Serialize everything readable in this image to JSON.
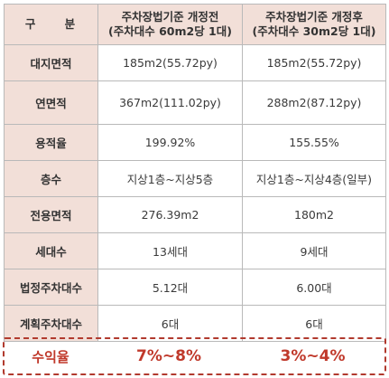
{
  "header": {
    "label": "구 분",
    "col1": "주차장법기준 개정전\n(주차대수 60m2당 1대)",
    "col1_line1": "주차장법기준 개정전",
    "col1_line2": "(주차대수 60m2당 1대)",
    "col2_line1": "주차장법기준 개정후",
    "col2_line2": "(주차대수 30m2당 1대)"
  },
  "rows": [
    {
      "label": "대지면적",
      "before": "185m2(55.72py)",
      "after": "185m2(55.72py)"
    },
    {
      "label": "연면적",
      "before": "367m2(111.02py)",
      "after": "288m2(87.12py)"
    },
    {
      "label": "용적율",
      "before": "199.92%",
      "after": "155.55%"
    },
    {
      "label": "층수",
      "before": "지상1층~지상5층",
      "after": "지상1층~지상4층(일부)"
    },
    {
      "label": "전용면적",
      "before": "276.39m2",
      "after": "180m2"
    },
    {
      "label": "세대수",
      "before": "13세대",
      "after": "9세대"
    },
    {
      "label": "법정주차대수",
      "before": "5.12대",
      "after": "6.00대"
    },
    {
      "label": "계획주차대수",
      "before": "6대",
      "after": "6대"
    }
  ],
  "profit": {
    "label": "수익율",
    "before": "7%~8%",
    "after": "3%~4%"
  },
  "colors": {
    "label_bg": "#f2dfd8",
    "border": "#b9b9b9",
    "profit_red": "#c0392b"
  }
}
